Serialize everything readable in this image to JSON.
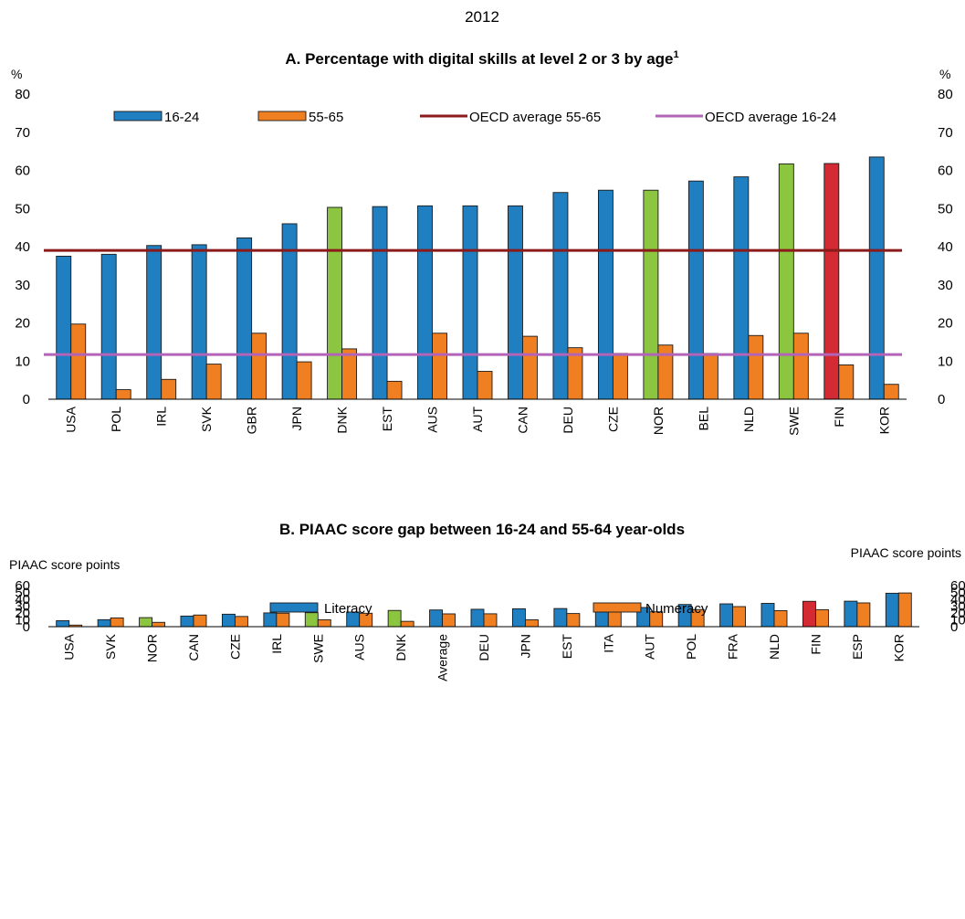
{
  "year_label": "2012",
  "colors": {
    "blue": "#1f7fc0",
    "orange": "#f07f22",
    "green": "#8cc540",
    "red": "#d42a33",
    "oecd_55_65_line": "#8b1a1a",
    "oecd_16_24_line": "#b364b8"
  },
  "chart_data": [
    {
      "type": "bar",
      "title": "A. Percentage with digital skills at level 2 or 3 by age",
      "title_superscript": "1",
      "unit_left": "%",
      "unit_right": "%",
      "ylim": [
        0,
        80
      ],
      "yticks": [
        0,
        10,
        20,
        30,
        40,
        50,
        60,
        70,
        80
      ],
      "categories": [
        "USA",
        "POL",
        "IRL",
        "SVK",
        "GBR",
        "JPN",
        "DNK",
        "EST",
        "AUS",
        "AUT",
        "CAN",
        "DEU",
        "CZE",
        "NOR",
        "BEL",
        "NLD",
        "SWE",
        "FIN",
        "KOR"
      ],
      "highlight_green": [
        "DNK",
        "NOR",
        "SWE"
      ],
      "highlight_red": [
        "FIN"
      ],
      "series": [
        {
          "name": "16-24",
          "values": [
            37.5,
            38,
            40.3,
            40.5,
            42.3,
            46,
            50.3,
            50.5,
            50.7,
            50.7,
            50.7,
            54.2,
            54.8,
            54.8,
            57.2,
            58.3,
            61.7,
            61.8,
            63.5
          ]
        },
        {
          "name": "55-65",
          "values": [
            19.7,
            2.5,
            5.2,
            9.2,
            17.3,
            9.8,
            13.2,
            4.7,
            17.3,
            7.3,
            16.5,
            13.5,
            12,
            14.2,
            12,
            16.7,
            17.3,
            9,
            3.9
          ]
        }
      ],
      "reference_lines": [
        {
          "name": "OECD average 55-65",
          "value": 39
        },
        {
          "name": "OECD average 16-24",
          "value": 11.7
        }
      ],
      "legend": [
        "16-24",
        "55-65",
        "OECD average 55-65",
        "OECD average 16-24"
      ],
      "legend_position": "top"
    },
    {
      "type": "bar",
      "title": "B. PIAAC score gap between 16-24 and 55-64 year-olds",
      "unit_left": "PIAAC score points",
      "unit_right": "PIAAC score points",
      "ylim": [
        0,
        60
      ],
      "yticks": [
        0,
        10,
        20,
        30,
        40,
        50,
        60
      ],
      "categories": [
        "USA",
        "SVK",
        "NOR",
        "CAN",
        "CZE",
        "IRL",
        "SWE",
        "AUS",
        "DNK",
        "Average",
        "DEU",
        "JPN",
        "EST",
        "ITA",
        "AUT",
        "POL",
        "FRA",
        "NLD",
        "FIN",
        "ESP",
        "KOR"
      ],
      "highlight_green": [
        "NOR",
        "SWE",
        "DNK"
      ],
      "highlight_red": [
        "FIN"
      ],
      "series": [
        {
          "name": "Literacy",
          "values": [
            8.8,
            10.2,
            13.2,
            15.5,
            18.2,
            20.1,
            20.4,
            21.4,
            23.7,
            24.4,
            25.4,
            26.1,
            26.5,
            27.5,
            28,
            32.4,
            33.3,
            34,
            37,
            37.2,
            48.8
          ]
        },
        {
          "name": "Numeracy",
          "values": [
            2.3,
            12.8,
            6.3,
            17,
            14.9,
            19.7,
            10.1,
            19.6,
            7.8,
            18.7,
            18.8,
            10,
            19.2,
            22,
            21.7,
            25,
            29.3,
            23.4,
            24.8,
            34.7,
            49.2
          ]
        }
      ],
      "legend": [
        "Literacy",
        "Numeracy"
      ],
      "legend_position": "top"
    }
  ]
}
